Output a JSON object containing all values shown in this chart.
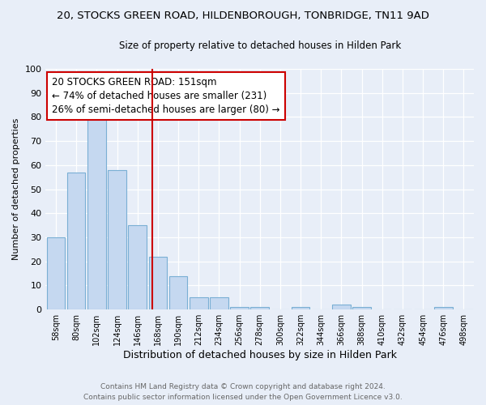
{
  "title1": "20, STOCKS GREEN ROAD, HILDENBOROUGH, TONBRIDGE, TN11 9AD",
  "title2": "Size of property relative to detached houses in Hilden Park",
  "xlabel": "Distribution of detached houses by size in Hilden Park",
  "ylabel": "Number of detached properties",
  "categories": [
    "58sqm",
    "80sqm",
    "102sqm",
    "124sqm",
    "146sqm",
    "168sqm",
    "190sqm",
    "212sqm",
    "234sqm",
    "256sqm",
    "278sqm",
    "300sqm",
    "322sqm",
    "344sqm",
    "366sqm",
    "388sqm",
    "410sqm",
    "432sqm",
    "454sqm",
    "476sqm",
    "498sqm"
  ],
  "values": [
    30,
    57,
    80,
    58,
    35,
    22,
    14,
    5,
    5,
    1,
    1,
    0,
    1,
    0,
    2,
    1,
    0,
    0,
    0,
    1,
    0
  ],
  "bar_color": "#c5d8f0",
  "bar_edge_color": "#7aafd4",
  "red_line_x": 4.72,
  "annotation_title": "20 STOCKS GREEN ROAD: 151sqm",
  "annotation_line1": "← 74% of detached houses are smaller (231)",
  "annotation_line2": "26% of semi-detached houses are larger (80) →",
  "annotation_box_color": "#ffffff",
  "annotation_box_edge": "#cc0000",
  "red_line_color": "#cc0000",
  "ylim": [
    0,
    100
  ],
  "yticks": [
    0,
    10,
    20,
    30,
    40,
    50,
    60,
    70,
    80,
    90,
    100
  ],
  "footer1": "Contains HM Land Registry data © Crown copyright and database right 2024.",
  "footer2": "Contains public sector information licensed under the Open Government Licence v3.0.",
  "bg_color": "#e8eef8",
  "grid_color": "#ffffff",
  "title1_fontsize": 9.5,
  "title2_fontsize": 8.5,
  "xlabel_fontsize": 9,
  "ylabel_fontsize": 8,
  "footer_fontsize": 6.5,
  "annot_fontsize": 8.5
}
